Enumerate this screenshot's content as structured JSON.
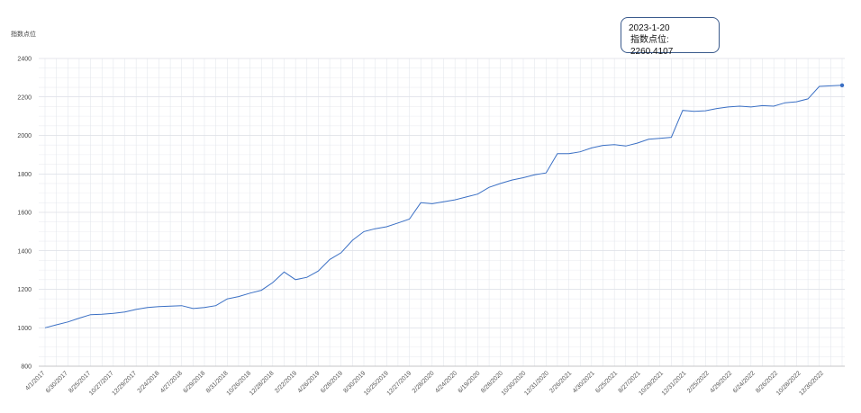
{
  "tooltip": {
    "date": "2023-1-20",
    "label": "指数点位",
    "value": "2260.4107"
  },
  "colors": {
    "line": "#3a6fc4",
    "grid": "#d9dde6",
    "axis": "#bbbbbb"
  },
  "chart_data": {
    "type": "line",
    "title": "",
    "ylabel": "指数点位",
    "xlabel": "",
    "ylim": [
      800,
      2400
    ],
    "yticks": [
      800,
      1000,
      1200,
      1400,
      1600,
      1800,
      2000,
      2200,
      2400
    ],
    "xtick_labels": [
      "4/1/2017",
      "6/30/2017",
      "8/25/2017",
      "10/27/2017",
      "12/29/2017",
      "2/24/2018",
      "4/27/2018",
      "6/29/2018",
      "8/31/2018",
      "10/26/2018",
      "12/28/2018",
      "2/22/2019",
      "4/26/2019",
      "6/28/2019",
      "8/30/2019",
      "10/25/2019",
      "12/27/2019",
      "2/28/2020",
      "4/24/2020",
      "6/19/2020",
      "8/28/2020",
      "10/30/2020",
      "12/31/2020",
      "2/26/2021",
      "4/30/2021",
      "6/25/2021",
      "8/27/2021",
      "10/29/2021",
      "12/31/2021",
      "2/25/2022",
      "4/29/2022",
      "6/24/2022",
      "8/26/2022",
      "10/28/2022",
      "12/30/2022"
    ],
    "grid": true,
    "series": [
      {
        "values": [
          1000,
          1015,
          1030,
          1050,
          1068,
          1070,
          1075,
          1082,
          1095,
          1105,
          1110,
          1112,
          1115,
          1100,
          1105,
          1115,
          1150,
          1162,
          1180,
          1195,
          1235,
          1290,
          1250,
          1262,
          1295,
          1355,
          1390,
          1455,
          1500,
          1515,
          1525,
          1545,
          1565,
          1650,
          1645,
          1655,
          1665,
          1680,
          1695,
          1730,
          1750,
          1768,
          1780,
          1795,
          1805,
          1905,
          1905,
          1915,
          1935,
          1948,
          1952,
          1945,
          1960,
          1980,
          1985,
          1990,
          2130,
          2125,
          2128,
          2140,
          2148,
          2152,
          2148,
          2155,
          2152,
          2170,
          2175,
          2190,
          2255,
          2258,
          2260.4107
        ]
      }
    ]
  }
}
